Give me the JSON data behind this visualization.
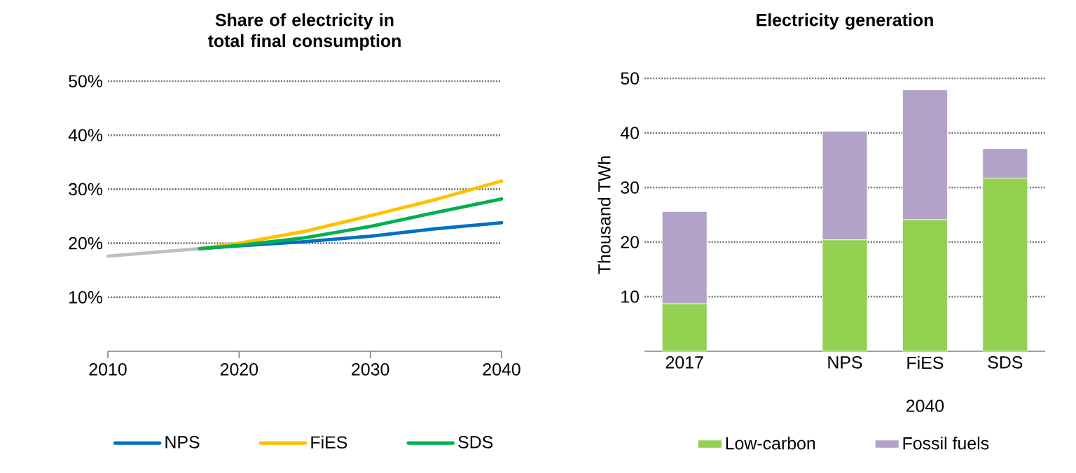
{
  "chart_data": [
    {
      "type": "line",
      "title": "Share of electricity in total final consumption",
      "xlim": [
        2010,
        2040
      ],
      "xticks": [
        2010,
        2020,
        2030,
        2040
      ],
      "ylim": [
        0,
        50
      ],
      "yticks": [
        {
          "value": 10,
          "label": "10%"
        },
        {
          "value": 20,
          "label": "20%"
        },
        {
          "value": 30,
          "label": "30%"
        },
        {
          "value": 40,
          "label": "40%"
        },
        {
          "value": 50,
          "label": "50%"
        }
      ],
      "grid": "y",
      "legend": "bottom",
      "series": [
        {
          "color": "#bfbfbf",
          "x": [
            2010,
            2017
          ],
          "values": [
            17.6,
            19.0
          ]
        },
        {
          "name": "NPS",
          "color": "#0070c0",
          "x": [
            2017,
            2020,
            2025,
            2030,
            2035,
            2040
          ],
          "values": [
            19.0,
            19.5,
            20.3,
            21.3,
            22.7,
            23.8
          ]
        },
        {
          "name": "FiES",
          "color": "#ffc000",
          "x": [
            2017,
            2020,
            2025,
            2030,
            2035,
            2040
          ],
          "values": [
            19.0,
            20.0,
            22.2,
            25.1,
            28.1,
            31.5
          ]
        },
        {
          "name": "SDS",
          "color": "#00b050",
          "x": [
            2017,
            2020,
            2025,
            2030,
            2035,
            2040
          ],
          "values": [
            19.0,
            19.6,
            21.0,
            23.1,
            25.7,
            28.2
          ]
        }
      ]
    },
    {
      "type": "bar",
      "title": "Electricity generation",
      "ylabel": "Thousand TWh",
      "categories": [
        "2017",
        null,
        "NPS",
        "FiES",
        "SDS"
      ],
      "ylim": [
        0,
        50
      ],
      "yticks": [
        10,
        20,
        30,
        40,
        50
      ],
      "grid": "y",
      "legend": "bottom",
      "stacked": true,
      "annotations": [
        "2040"
      ],
      "series": [
        {
          "name": "Low-carbon",
          "color": "#92d050",
          "values": [
            8.7,
            null,
            20.4,
            24.1,
            31.7
          ]
        },
        {
          "name": "Fossil fuels",
          "color": "#b3a2c7",
          "values": [
            16.9,
            null,
            19.9,
            23.8,
            5.4
          ]
        }
      ]
    }
  ]
}
